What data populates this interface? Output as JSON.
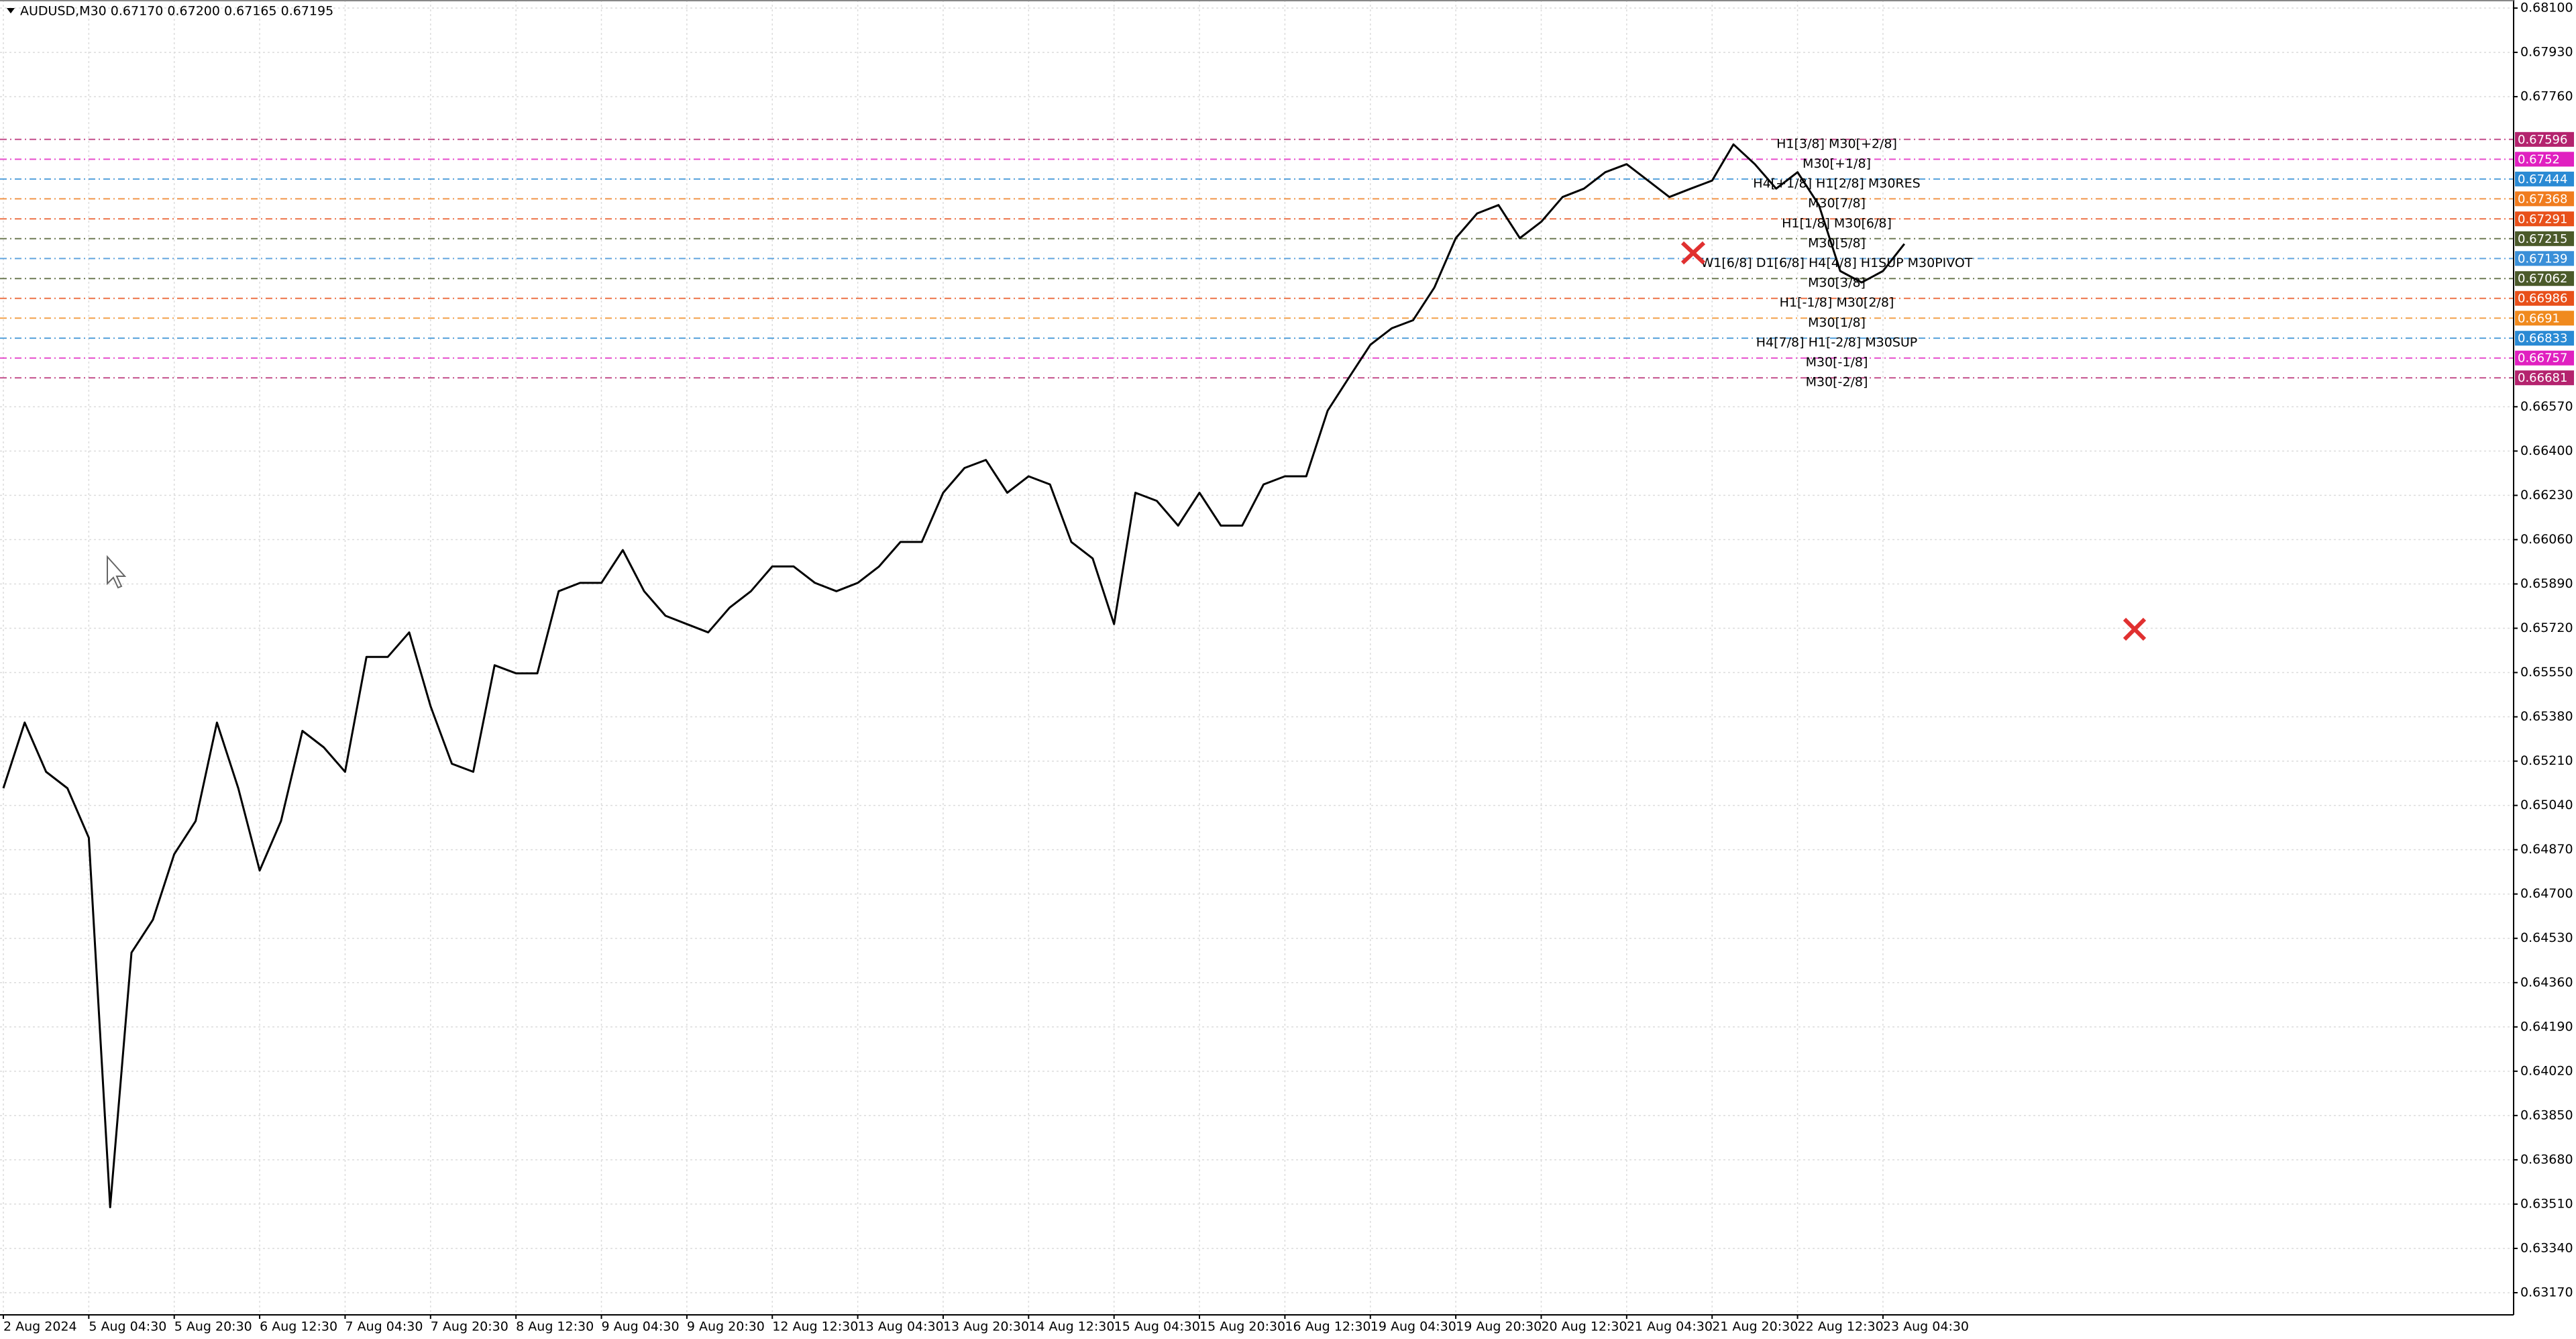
{
  "chart_data": {
    "type": "line",
    "header": "AUDUSD,M30  0.67170 0.67200 0.67165 0.67195",
    "categories": [
      "2 Aug 2024",
      null,
      null,
      null,
      "5 Aug 04:30",
      null,
      null,
      null,
      "5 Aug 20:30",
      null,
      null,
      null,
      "6 Aug 12:30",
      null,
      null,
      null,
      "7 Aug 04:30",
      null,
      null,
      null,
      "7 Aug 20:30",
      null,
      null,
      null,
      "8 Aug 12:30",
      null,
      null,
      null,
      "9 Aug 04:30",
      null,
      null,
      null,
      "9 Aug 20:30",
      null,
      null,
      null,
      "12 Aug 12:30",
      null,
      null,
      null,
      "13 Aug 04:30",
      null,
      null,
      null,
      "13 Aug 20:30",
      null,
      null,
      null,
      "14 Aug 12:30",
      null,
      null,
      null,
      "15 Aug 04:30",
      null,
      null,
      null,
      "15 Aug 20:30",
      null,
      null,
      null,
      "16 Aug 12:30",
      null,
      null,
      null,
      "19 Aug 04:30",
      null,
      null,
      null,
      "19 Aug 20:30",
      null,
      null,
      null,
      "20 Aug 12:30",
      null,
      null,
      null,
      "21 Aug 04:30",
      null,
      null,
      null,
      "21 Aug 20:30",
      null,
      null,
      null,
      "22 Aug 12:30",
      null,
      null,
      null,
      "23 Aug 04:30",
      null
    ],
    "series": [
      {
        "name": "AUDUSD",
        "color": "#000000",
        "values": [
          0.65106,
          0.65358,
          0.65169,
          0.65106,
          0.64916,
          0.63498,
          0.64475,
          0.64601,
          0.64853,
          0.6498,
          0.65358,
          0.65106,
          0.6479,
          0.6498,
          0.65326,
          0.65263,
          0.65169,
          0.6561,
          0.6561,
          0.65704,
          0.65421,
          0.652,
          0.65169,
          0.65578,
          0.65547,
          0.65547,
          0.65862,
          0.65894,
          0.65894,
          0.6602,
          0.65862,
          0.65768,
          0.65736,
          0.65704,
          0.65799,
          0.65862,
          0.65957,
          0.65957,
          0.65894,
          0.65862,
          0.65894,
          0.65957,
          0.66051,
          0.66051,
          0.6624,
          0.66335,
          0.66366,
          0.6624,
          0.66303,
          0.66272,
          0.66051,
          0.65988,
          0.65736,
          0.6624,
          0.66209,
          0.66114,
          0.6624,
          0.66114,
          0.66114,
          0.66272,
          0.66303,
          0.66303,
          0.66555,
          0.66682,
          0.66808,
          0.66871,
          0.66902,
          0.67028,
          0.67217,
          0.67312,
          0.67344,
          0.67217,
          0.6728,
          0.67375,
          0.67407,
          0.6747,
          0.67501,
          0.67438,
          0.67375,
          0.67407,
          0.67438,
          0.67577,
          0.67501,
          0.67407,
          0.6747,
          0.67344,
          0.67091,
          0.67047,
          0.67091,
          0.67195
        ]
      }
    ],
    "ylim": [
      0.63085,
      0.68131
    ],
    "yticks": [
      {
        "value": 0.681,
        "label": "0.68100"
      },
      {
        "value": 0.6793,
        "label": "0.67930"
      },
      {
        "value": 0.6776,
        "label": "0.67760"
      },
      {
        "value": 0.6657,
        "label": "0.66570"
      },
      {
        "value": 0.664,
        "label": "0.66400"
      },
      {
        "value": 0.6623,
        "label": "0.66230"
      },
      {
        "value": 0.6606,
        "label": "0.66060"
      },
      {
        "value": 0.6589,
        "label": "0.65890"
      },
      {
        "value": 0.6572,
        "label": "0.65720"
      },
      {
        "value": 0.6555,
        "label": "0.65550"
      },
      {
        "value": 0.6538,
        "label": "0.65380"
      },
      {
        "value": 0.6521,
        "label": "0.65210"
      },
      {
        "value": 0.6504,
        "label": "0.65040"
      },
      {
        "value": 0.6487,
        "label": "0.64870"
      },
      {
        "value": 0.647,
        "label": "0.64700"
      },
      {
        "value": 0.6453,
        "label": "0.64530"
      },
      {
        "value": 0.6436,
        "label": "0.64360"
      },
      {
        "value": 0.6419,
        "label": "0.64190"
      },
      {
        "value": 0.6402,
        "label": "0.64020"
      },
      {
        "value": 0.6385,
        "label": "0.63850"
      },
      {
        "value": 0.6368,
        "label": "0.63680"
      },
      {
        "value": 0.6351,
        "label": "0.63510"
      },
      {
        "value": 0.6334,
        "label": "0.63340"
      },
      {
        "value": 0.6317,
        "label": "0.63170"
      }
    ],
    "grid": true,
    "levels": [
      {
        "price": 0.67596,
        "text": "H1[3/8] M30[+2/8]",
        "color": "#b4236e"
      },
      {
        "price": 0.6752,
        "text": "M30[+1/8]",
        "color": "#e020c0"
      },
      {
        "price": 0.67444,
        "text": "H4[+1/8] H1[2/8] M30RES",
        "color": "#2a8ad4"
      },
      {
        "price": 0.67368,
        "text": "M30[7/8]",
        "color": "#f07c1e"
      },
      {
        "price": 0.67291,
        "text": "H1[1/8] M30[6/8]",
        "color": "#e8501a"
      },
      {
        "price": 0.67215,
        "text": "M30[5/8]",
        "color": "#4b5a2a"
      },
      {
        "price": 0.67139,
        "text": "W1[6/8] D1[6/8] H4[4/8] H1SUP M30PIVOT",
        "color": "#3a8fd8"
      },
      {
        "price": 0.67062,
        "text": "M30[3/8]",
        "color": "#4b5a2a"
      },
      {
        "price": 0.66986,
        "text": "H1[-1/8] M30[2/8]",
        "color": "#e8501a"
      },
      {
        "price": 0.6691,
        "text": "M30[1/8]",
        "color": "#f08a1e"
      },
      {
        "price": 0.66833,
        "text": "H4[7/8] H1[-2/8] M30SUP",
        "color": "#2a8ad4"
      },
      {
        "price": 0.66757,
        "text": "M30[-1/8]",
        "color": "#e020c0"
      },
      {
        "price": 0.66681,
        "text": "M30[-2/8]",
        "color": "#b4236e"
      }
    ]
  }
}
